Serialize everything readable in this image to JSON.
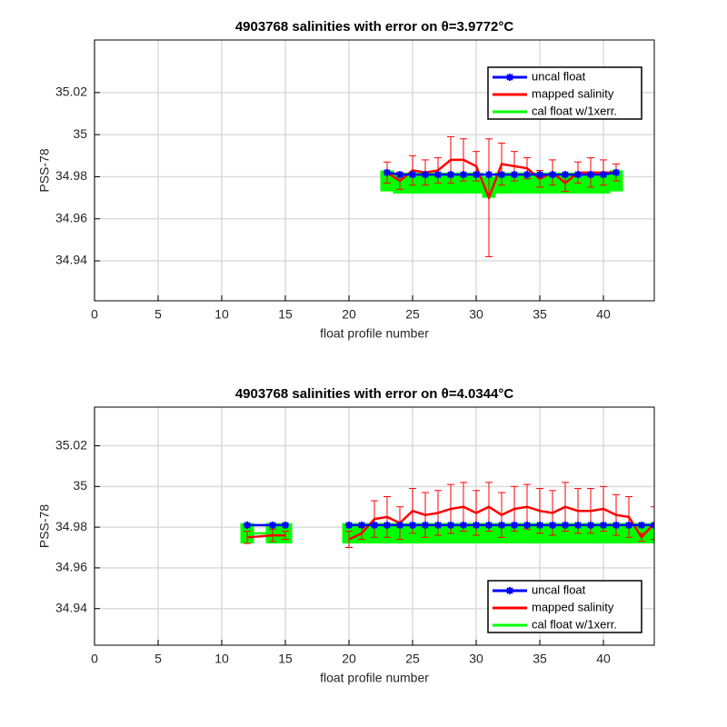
{
  "chart_data": [
    {
      "type": "line",
      "title": "4903768 salinities with error on θ=3.9772°C",
      "xlabel": "float profile number",
      "ylabel": "PSS-78",
      "x": [
        23,
        24,
        25,
        26,
        27,
        28,
        29,
        30,
        31,
        32,
        33,
        34,
        35,
        36,
        37,
        38,
        39,
        40,
        41
      ],
      "series": [
        {
          "name": "uncal float",
          "color": "#0000ff",
          "values": [
            34.982,
            34.981,
            34.981,
            34.981,
            34.981,
            34.981,
            34.981,
            34.981,
            34.981,
            34.981,
            34.981,
            34.981,
            34.981,
            34.981,
            34.981,
            34.981,
            34.981,
            34.981,
            34.982
          ]
        },
        {
          "name": "mapped salinity",
          "color": "#ff0000",
          "values": [
            34.982,
            34.978,
            34.983,
            34.982,
            34.983,
            34.988,
            34.988,
            34.985,
            34.97,
            34.986,
            34.985,
            34.984,
            34.979,
            34.982,
            34.977,
            34.982,
            34.982,
            34.982,
            34.982
          ],
          "errors": [
            0.005,
            0.004,
            0.007,
            0.006,
            0.006,
            0.011,
            0.01,
            0.007,
            0.028,
            0.01,
            0.007,
            0.005,
            0.004,
            0.006,
            0.004,
            0.005,
            0.007,
            0.006,
            0.004
          ]
        },
        {
          "name": "cal float w/1xerr.",
          "color": "#00ff00",
          "values": [
            34.978,
            34.977,
            34.977,
            34.977,
            34.977,
            34.977,
            34.977,
            34.977,
            34.975,
            34.977,
            34.977,
            34.977,
            34.977,
            34.977,
            34.977,
            34.977,
            34.977,
            34.977,
            34.978
          ],
          "errors": [
            0.005,
            0.005,
            0.005,
            0.005,
            0.005,
            0.005,
            0.005,
            0.005,
            0.005,
            0.005,
            0.005,
            0.005,
            0.005,
            0.005,
            0.005,
            0.005,
            0.005,
            0.005,
            0.005
          ]
        }
      ],
      "xlim": [
        0,
        44
      ],
      "xticks": [
        0,
        5,
        10,
        15,
        20,
        25,
        30,
        35,
        40
      ],
      "ylim": [
        34.921,
        35.045
      ],
      "yticks": [
        34.94,
        34.96,
        34.98,
        35,
        35.02
      ],
      "grid": true,
      "legend": "northeast"
    },
    {
      "type": "line",
      "title": "4903768 salinities with error on θ=4.0344°C",
      "xlabel": "float profile number",
      "ylabel": "PSS-78",
      "x": [
        12,
        14,
        15,
        16,
        17,
        18,
        19,
        20,
        21,
        22,
        23,
        24,
        25,
        26,
        27,
        28,
        29,
        30,
        31,
        32,
        33,
        34,
        35,
        36,
        37,
        38,
        39,
        40,
        41,
        42,
        43,
        44
      ],
      "series": [
        {
          "name": "uncal float",
          "color": "#0000ff",
          "values": [
            34.981,
            34.981,
            34.981,
            null,
            null,
            null,
            null,
            34.981,
            34.981,
            34.981,
            34.981,
            34.981,
            34.981,
            34.981,
            34.981,
            34.981,
            34.981,
            34.981,
            34.981,
            34.981,
            34.981,
            34.981,
            34.981,
            34.981,
            34.981,
            34.981,
            34.981,
            34.981,
            34.981,
            34.981,
            34.981,
            34.981
          ]
        },
        {
          "name": "mapped salinity",
          "color": "#ff0000",
          "values": [
            34.975,
            34.976,
            34.976,
            null,
            null,
            null,
            null,
            34.974,
            34.977,
            34.984,
            34.985,
            34.982,
            34.988,
            34.986,
            34.987,
            34.989,
            34.99,
            34.987,
            34.99,
            34.986,
            34.989,
            34.99,
            34.988,
            34.987,
            34.99,
            34.988,
            34.988,
            34.989,
            34.986,
            34.985,
            34.975,
            34.982
          ],
          "errors": [
            0.003,
            0.003,
            0.002,
            null,
            null,
            null,
            null,
            0.004,
            0.003,
            0.009,
            0.01,
            0.008,
            0.011,
            0.011,
            0.011,
            0.012,
            0.012,
            0.011,
            0.012,
            0.011,
            0.011,
            0.011,
            0.011,
            0.011,
            0.012,
            0.011,
            0.011,
            0.011,
            0.01,
            0.01,
            0.002,
            0.008
          ]
        },
        {
          "name": "cal float w/1xerr.",
          "color": "#00ff00",
          "values": [
            34.977,
            34.977,
            34.977,
            null,
            null,
            null,
            null,
            34.977,
            34.977,
            34.977,
            34.977,
            34.977,
            34.977,
            34.977,
            34.977,
            34.977,
            34.977,
            34.977,
            34.977,
            34.977,
            34.977,
            34.977,
            34.977,
            34.977,
            34.977,
            34.977,
            34.977,
            34.977,
            34.977,
            34.977,
            34.977,
            34.977
          ],
          "errors": [
            0.005,
            0.005,
            0.005,
            null,
            null,
            null,
            null,
            0.005,
            0.005,
            0.005,
            0.005,
            0.005,
            0.005,
            0.005,
            0.005,
            0.005,
            0.005,
            0.005,
            0.005,
            0.005,
            0.005,
            0.005,
            0.005,
            0.005,
            0.005,
            0.005,
            0.005,
            0.005,
            0.005,
            0.005,
            0.005,
            0.005
          ]
        }
      ],
      "xlim": [
        0,
        44
      ],
      "xticks": [
        0,
        5,
        10,
        15,
        20,
        25,
        30,
        35,
        40
      ],
      "ylim": [
        34.922,
        35.039
      ],
      "yticks": [
        34.94,
        34.96,
        34.98,
        35,
        35.02
      ],
      "grid": true,
      "legend": "southeast"
    }
  ]
}
